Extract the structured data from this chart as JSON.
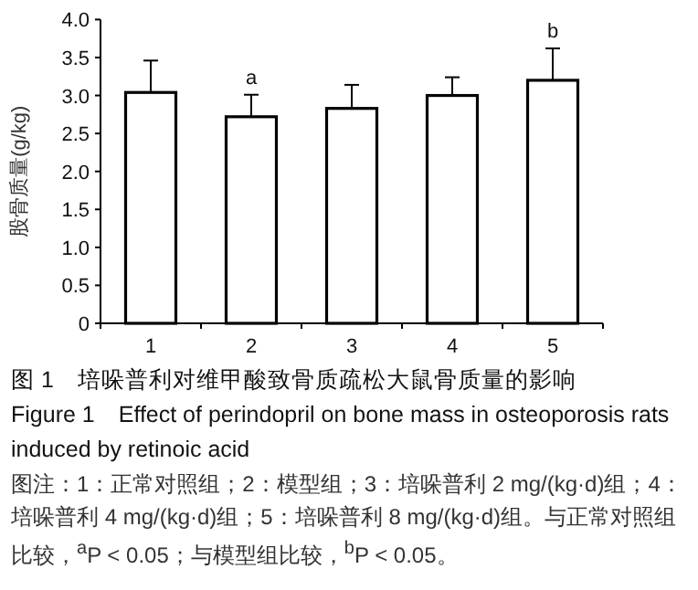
{
  "chart_data": {
    "type": "bar",
    "title": "图 1　培哚普利对维甲酸致骨质疏松大鼠骨质量的影响",
    "subtitle": "Figure 1　Effect of perindopril on bone mass in osteoporosis rats induced by retinoic acid",
    "ylabel": "股骨质量(g/kg)",
    "categories": [
      "1",
      "2",
      "3",
      "4",
      "5"
    ],
    "values": [
      3.04,
      2.72,
      2.83,
      3.0,
      3.2
    ],
    "errors": [
      0.42,
      0.29,
      0.31,
      0.24,
      0.42
    ],
    "color": "#ffffff",
    "ylim": [
      0,
      4.0
    ],
    "yticks": [
      0,
      0.5,
      {
        "value": 1.0,
        "label": "1.0"
      },
      1.5,
      {
        "value": 2.0,
        "label": "2.0"
      },
      2.5,
      {
        "value": 3.0,
        "label": "3.0"
      },
      3.5,
      {
        "value": 4.0,
        "label": "4.0"
      }
    ],
    "grid": false,
    "annotations": [
      {
        "text": "a",
        "x": "2",
        "y": 3.01
      },
      {
        "text": "b",
        "x": "5",
        "y": 3.62
      },
      "图注：1：正常对照组；2：模型组；3：培哚普利 2 mg/(kg·d)组；4：培哚普利 4 mg/(kg·d)组；5：培哚普利 8 mg/(kg·d)组。与正常对照组比较，$^{a}$P < 0.05；与模型组比较，$^{b}$P < 0.05。"
    ]
  }
}
